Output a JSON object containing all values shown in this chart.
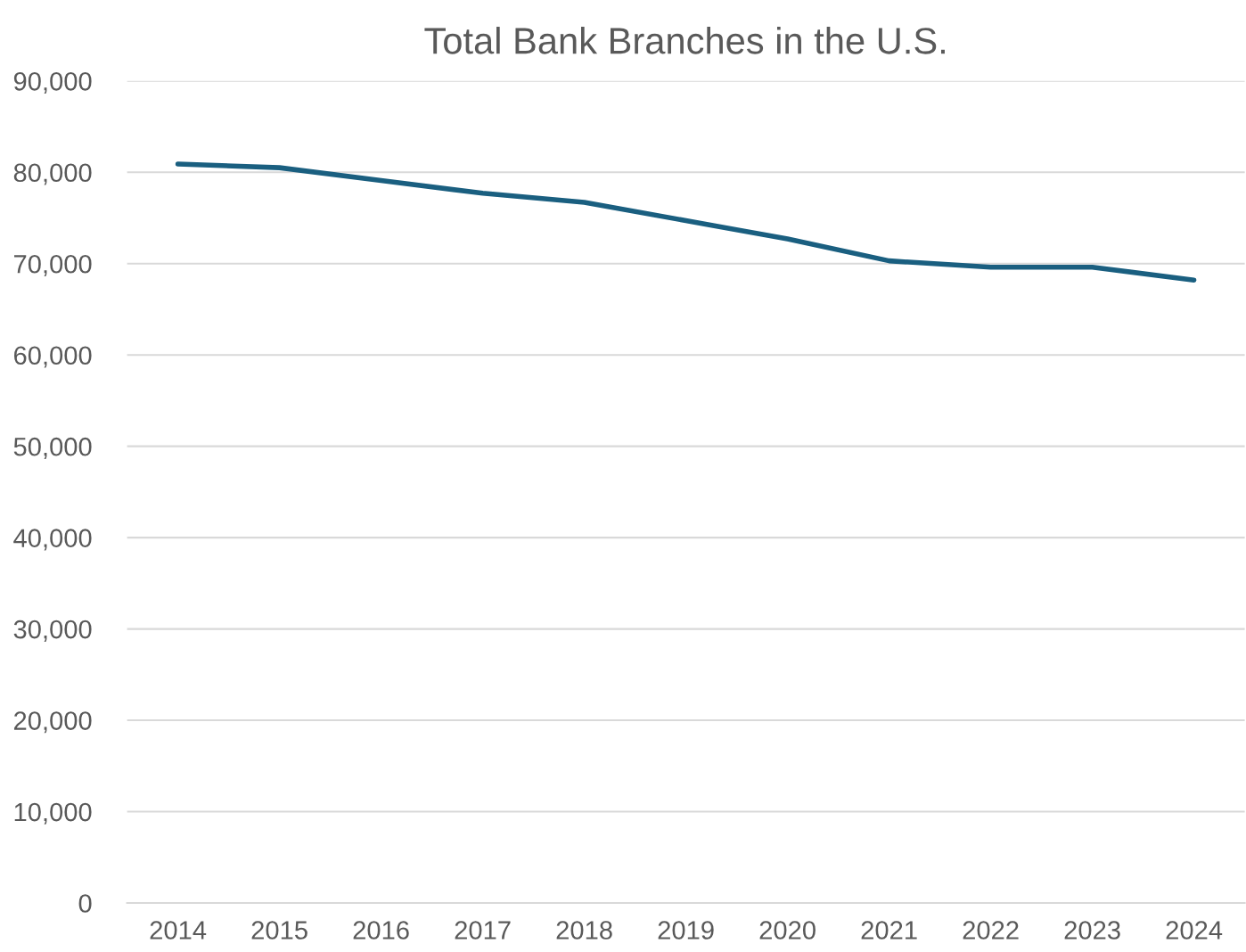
{
  "chart_data": {
    "type": "line",
    "title": "Total Bank Branches in the U.S.",
    "categories": [
      "2014",
      "2015",
      "2016",
      "2017",
      "2018",
      "2019",
      "2020",
      "2021",
      "2022",
      "2023",
      "2024"
    ],
    "series": [
      {
        "color": "#1a5f80",
        "values": [
          80900,
          80500,
          79100,
          77700,
          76700,
          74700,
          72700,
          70300,
          69600,
          69600,
          68200
        ]
      }
    ],
    "ylim": [
      0,
      90000
    ],
    "yticks": [
      {
        "value": 0,
        "label": "0"
      },
      {
        "value": 10000,
        "label": "10,000"
      },
      {
        "value": 20000,
        "label": "20,000"
      },
      {
        "value": 30000,
        "label": "30,000"
      },
      {
        "value": 40000,
        "label": "40,000"
      },
      {
        "value": 50000,
        "label": "50,000"
      },
      {
        "value": 60000,
        "label": "60,000"
      },
      {
        "value": 70000,
        "label": "70,000"
      },
      {
        "value": 80000,
        "label": "80,000"
      },
      {
        "value": 90000,
        "label": "90,000"
      }
    ],
    "grid": "y",
    "marker": "none",
    "line_style": "solid",
    "legend": false
  }
}
